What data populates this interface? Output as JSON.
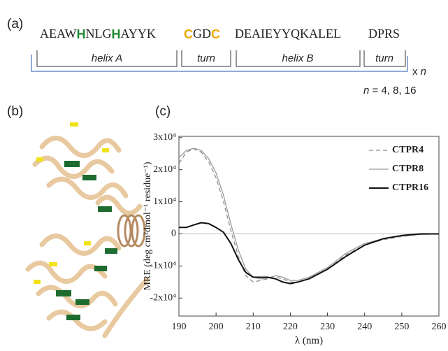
{
  "panel_a": {
    "label": "(a)",
    "sequence": [
      {
        "segments": [
          {
            "text": "AEAW"
          },
          {
            "text": "H",
            "color": "#1e8a2e"
          },
          {
            "text": "NLG"
          },
          {
            "text": "H",
            "color": "#1e8a2e"
          },
          {
            "text": "AYYK"
          }
        ]
      },
      {
        "segments": [
          {
            "text": "C",
            "color": "#f0a800"
          },
          {
            "text": "GD"
          },
          {
            "text": "C",
            "color": "#f0a800"
          }
        ]
      },
      {
        "segments": [
          {
            "text": "DEAIEYYQKALEL"
          }
        ]
      },
      {
        "segments": [
          {
            "text": "DPRS"
          }
        ]
      }
    ],
    "regions": [
      "helix A",
      "turn",
      "helix B",
      "turn"
    ],
    "repeat_symbol": "x",
    "repeat_var": "n",
    "n_note_var": "n",
    "n_note_rest": "= 4, 8, 16"
  },
  "panel_b": {
    "label": "(b)"
  },
  "panel_c": {
    "label": "(c)"
  },
  "chart_data": {
    "type": "line",
    "xlabel": "λ (nm)",
    "ylabel": "MRE (deg cm²dmol⁻¹ residue⁻¹)",
    "x": [
      190,
      192,
      194,
      196,
      198,
      200,
      202,
      204,
      206,
      208,
      210,
      212,
      214,
      216,
      218,
      220,
      222,
      225,
      230,
      235,
      240,
      245,
      250,
      255,
      260
    ],
    "series": [
      {
        "name": "CTPR4",
        "color": "#8c8c8c",
        "dash": true,
        "values": [
          22000,
          25500,
          26500,
          25500,
          22500,
          17500,
          10000,
          1000,
          -7000,
          -13000,
          -15000,
          -14500,
          -14000,
          -13500,
          -14000,
          -15000,
          -15000,
          -14000,
          -11000,
          -6500,
          -3500,
          -1800,
          -800,
          -200,
          0
        ]
      },
      {
        "name": "CTPR8",
        "color": "#9a9a9a",
        "dash": false,
        "values": [
          23700,
          26000,
          26700,
          26000,
          23500,
          19000,
          12000,
          3000,
          -5000,
          -11000,
          -13500,
          -14000,
          -13800,
          -13000,
          -13500,
          -14500,
          -14500,
          -13500,
          -10500,
          -6000,
          -3000,
          -1500,
          -700,
          -200,
          0
        ]
      },
      {
        "name": "CTPR16",
        "color": "#111111",
        "dash": false,
        "values": [
          2000,
          2000,
          2800,
          3500,
          3200,
          2000,
          500,
          -3000,
          -8000,
          -12000,
          -13500,
          -13500,
          -13500,
          -14000,
          -15000,
          -15500,
          -15000,
          -14000,
          -11000,
          -7000,
          -3500,
          -1500,
          -500,
          0,
          0
        ]
      }
    ],
    "xlim": [
      190,
      260
    ],
    "xticks": [
      190,
      200,
      210,
      220,
      230,
      240,
      250,
      260
    ],
    "ylim": [
      -25600,
      30400
    ],
    "yticks": [
      {
        "value": 30000,
        "label": "3x10⁴"
      },
      {
        "value": 20000,
        "label": "2x10⁴"
      },
      {
        "value": 10000,
        "label": "1x10⁴"
      },
      0,
      {
        "value": -10000,
        "label": "-1x10⁴"
      },
      {
        "value": -20000,
        "label": "-2x10⁴"
      }
    ],
    "zero_line": true,
    "legend": "top-right"
  }
}
